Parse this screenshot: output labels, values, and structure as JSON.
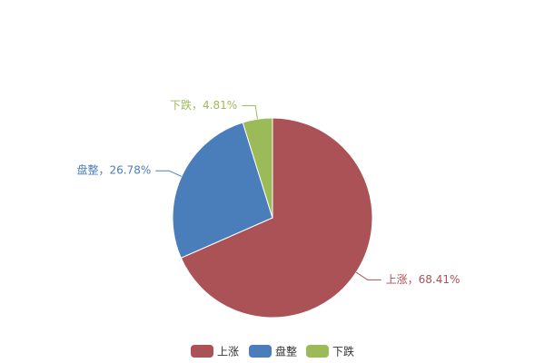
{
  "chart_data": {
    "type": "pie",
    "categories": [
      "上涨",
      "盘整",
      "下跌"
    ],
    "values": [
      68.41,
      26.78,
      4.81
    ],
    "value_labels": [
      "上涨，68.41%",
      "盘整，26.78%",
      "下跌，4.81%"
    ],
    "colors": [
      "#ab5257",
      "#4a7ebb",
      "#9bbb59"
    ]
  }
}
